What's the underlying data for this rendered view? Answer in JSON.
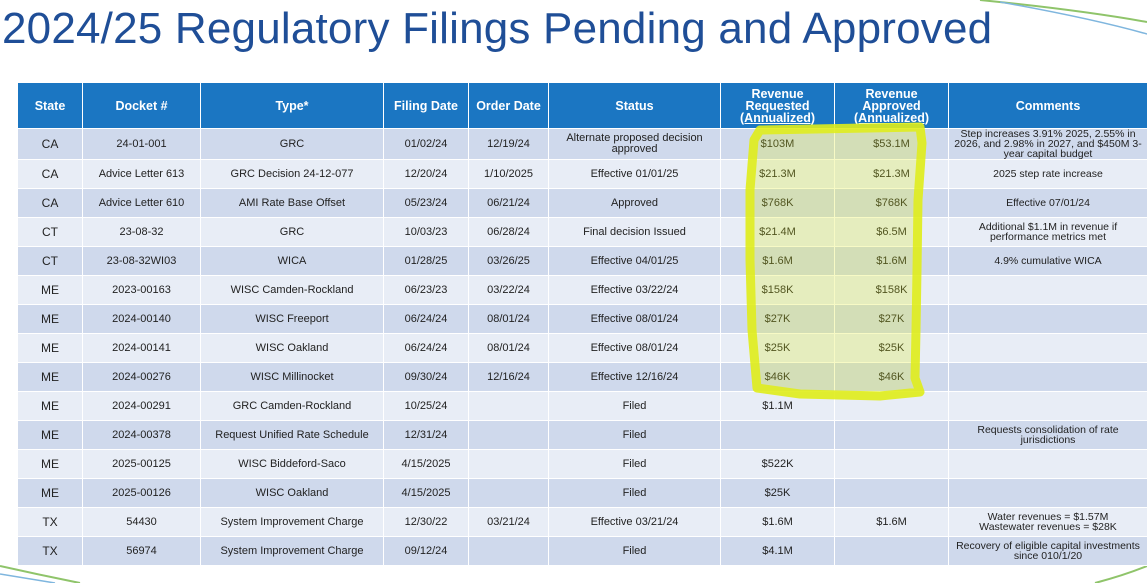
{
  "title": "2024/25 Regulatory Filings Pending and Approved",
  "colors": {
    "title": "#1f4e97",
    "header_bg": "#1b76c2",
    "row_dark": "#cfd9ec",
    "row_light": "#e8edf6",
    "highlight": "#e0ee1a"
  },
  "headers": {
    "state": "State",
    "docket": "Docket #",
    "type": "Type*",
    "filing_date": "Filing Date",
    "order_date": "Order Date",
    "status": "Status",
    "rev_req": [
      "Revenue",
      "Requested",
      "(Annualized)"
    ],
    "rev_app": [
      "Revenue",
      "Approved",
      "(Annualized)"
    ],
    "comments": "Comments"
  },
  "rows": [
    {
      "state": "CA",
      "docket": "24-01-001",
      "type": "GRC",
      "filing": "01/02/24",
      "order": "12/19/24",
      "status": "Alternate proposed decision approved",
      "req": "$103M",
      "app": "$53.1M",
      "comment": "Step increases 3.91% 2025, 2.55% in 2026, and 2.98% in 2027, and $450M 3-year capital budget"
    },
    {
      "state": "CA",
      "docket": "Advice Letter 613",
      "type": "GRC Decision 24-12-077",
      "filing": "12/20/24",
      "order": "1/10/2025",
      "status": "Effective 01/01/25",
      "req": "$21.3M",
      "app": "$21.3M",
      "comment": "2025 step rate increase"
    },
    {
      "state": "CA",
      "docket": "Advice Letter 610",
      "type": "AMI Rate Base Offset",
      "filing": "05/23/24",
      "order": "06/21/24",
      "status": "Approved",
      "req": "$768K",
      "app": "$768K",
      "comment": "Effective 07/01/24"
    },
    {
      "state": "CT",
      "docket": "23-08-32",
      "type": "GRC",
      "filing": "10/03/23",
      "order": "06/28/24",
      "status": "Final decision Issued",
      "req": "$21.4M",
      "app": "$6.5M",
      "comment": "Additional $1.1M in revenue if performance metrics met"
    },
    {
      "state": "CT",
      "docket": "23-08-32WI03",
      "type": "WICA",
      "filing": "01/28/25",
      "order": "03/26/25",
      "status": "Effective 04/01/25",
      "req": "$1.6M",
      "app": "$1.6M",
      "comment": "4.9% cumulative WICA"
    },
    {
      "state": "ME",
      "docket": "2023-00163",
      "type": "WISC Camden-Rockland",
      "filing": "06/23/23",
      "order": "03/22/24",
      "status": "Effective 03/22/24",
      "req": "$158K",
      "app": "$158K",
      "comment": ""
    },
    {
      "state": "ME",
      "docket": "2024-00140",
      "type": "WISC Freeport",
      "filing": "06/24/24",
      "order": "08/01/24",
      "status": "Effective 08/01/24",
      "req": "$27K",
      "app": "$27K",
      "comment": ""
    },
    {
      "state": "ME",
      "docket": "2024-00141",
      "type": "WISC Oakland",
      "filing": "06/24/24",
      "order": "08/01/24",
      "status": "Effective 08/01/24",
      "req": "$25K",
      "app": "$25K",
      "comment": ""
    },
    {
      "state": "ME",
      "docket": "2024-00276",
      "type": "WISC Millinocket",
      "filing": "09/30/24",
      "order": "12/16/24",
      "status": "Effective 12/16/24",
      "req": "$46K",
      "app": "$46K",
      "comment": ""
    },
    {
      "state": "ME",
      "docket": "2024-00291",
      "type": "GRC Camden-Rockland",
      "filing": "10/25/24",
      "order": "",
      "status": "Filed",
      "req": "$1.1M",
      "app": "",
      "comment": ""
    },
    {
      "state": "ME",
      "docket": "2024-00378",
      "type": "Request Unified Rate Schedule",
      "filing": "12/31/24",
      "order": "",
      "status": "Filed",
      "req": "",
      "app": "",
      "comment": "Requests consolidation of rate jurisdictions"
    },
    {
      "state": "ME",
      "docket": "2025-00125",
      "type": "WISC Biddeford-Saco",
      "filing": "4/15/2025",
      "order": "",
      "status": "Filed",
      "req": "$522K",
      "app": "",
      "comment": ""
    },
    {
      "state": "ME",
      "docket": "2025-00126",
      "type": "WISC Oakland",
      "filing": "4/15/2025",
      "order": "",
      "status": "Filed",
      "req": "$25K",
      "app": "",
      "comment": ""
    },
    {
      "state": "TX",
      "docket": "54430",
      "type": "System Improvement Charge",
      "filing": "12/30/22",
      "order": "03/21/24",
      "status": "Effective 03/21/24",
      "req": "$1.6M",
      "app": "$1.6M",
      "comment": "Water revenues = $1.57M\nWastewater revenues = $28K"
    },
    {
      "state": "TX",
      "docket": "56974",
      "type": "System Improvement Charge",
      "filing": "09/12/24",
      "order": "",
      "status": "Filed",
      "req": "$4.1M",
      "app": "",
      "comment": "Recovery of eligible capital investments since 010/1/20"
    }
  ]
}
